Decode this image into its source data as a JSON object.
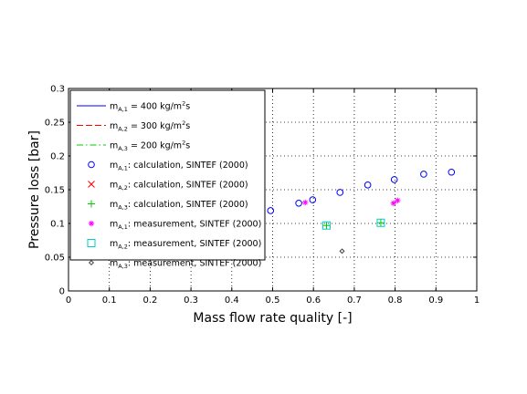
{
  "chart_data": {
    "type": "scatter",
    "title": "",
    "xlabel": "Mass flow rate quality [-]",
    "ylabel": "Pressure loss [bar]",
    "xlim": [
      0,
      1
    ],
    "ylim": [
      0,
      0.3
    ],
    "xticks": [
      "0",
      "0.1",
      "0.2",
      "0.3",
      "0.4",
      "0.5",
      "0.6",
      "0.7",
      "0.8",
      "0.9",
      "1"
    ],
    "yticks": [
      "0",
      "0.05",
      "0.1",
      "0.15",
      "0.2",
      "0.25",
      "0.3"
    ],
    "grid": true,
    "legend_position": "top-left",
    "series": [
      {
        "legend": {
          "pre": "m",
          "sub": "A,1",
          "post": " = 400 kg/m",
          "sup": "2",
          "tail": "s"
        },
        "kind": "line",
        "style": "solid",
        "color": "#0000ff",
        "points": []
      },
      {
        "legend": {
          "pre": "m",
          "sub": "A,2",
          "post": " = 300 kg/m",
          "sup": "2",
          "tail": "s"
        },
        "kind": "line",
        "style": "dashed",
        "color": "#ff0000",
        "points": []
      },
      {
        "legend": {
          "pre": "m",
          "sub": "A,3",
          "post": " = 200 kg/m",
          "sup": "2",
          "tail": "s"
        },
        "kind": "line",
        "style": "dashdot",
        "color": "#00cc00",
        "points": []
      },
      {
        "legend": {
          "pre": "m",
          "sub": "A,1",
          "post": ": calculation, SINTEF (2000)",
          "sup": "",
          "tail": ""
        },
        "kind": "marker",
        "marker": "circle",
        "color": "#0000ff",
        "points": [
          [
            0.495,
            0.119
          ],
          [
            0.564,
            0.13
          ],
          [
            0.598,
            0.135
          ],
          [
            0.665,
            0.146
          ],
          [
            0.733,
            0.157
          ],
          [
            0.798,
            0.165
          ],
          [
            0.87,
            0.173
          ],
          [
            0.938,
            0.176
          ]
        ]
      },
      {
        "legend": {
          "pre": "m",
          "sub": "A,2",
          "post": ": calculation, SINTEF (2000)",
          "sup": "",
          "tail": ""
        },
        "kind": "marker",
        "marker": "x",
        "color": "#ff0000",
        "points": []
      },
      {
        "legend": {
          "pre": "m",
          "sub": "A,3",
          "post": ": calculation, SINTEF (2000)",
          "sup": "",
          "tail": ""
        },
        "kind": "marker",
        "marker": "plus",
        "color": "#00cc00",
        "points": [
          [
            0.632,
            0.097
          ],
          [
            0.765,
            0.101
          ]
        ]
      },
      {
        "legend": {
          "pre": "m",
          "sub": "A,1",
          "post": ": measurement, SINTEF (2000)",
          "sup": "",
          "tail": ""
        },
        "kind": "marker",
        "marker": "star",
        "color": "#ff00ff",
        "points": [
          [
            0.58,
            0.131
          ],
          [
            0.796,
            0.13
          ],
          [
            0.806,
            0.134
          ]
        ]
      },
      {
        "legend": {
          "pre": "m",
          "sub": "A,2",
          "post": ": measurement, SINTEF (2000)",
          "sup": "",
          "tail": ""
        },
        "kind": "marker",
        "marker": "square",
        "color": "#00cccc",
        "points": [
          [
            0.632,
            0.097
          ],
          [
            0.765,
            0.101
          ]
        ]
      },
      {
        "legend": {
          "pre": "m",
          "sub": "A,3",
          "post": ": measurement, SINTEF (2000)",
          "sup": "",
          "tail": ""
        },
        "kind": "marker",
        "marker": "diamond",
        "color": "#444444",
        "points": [
          [
            0.67,
            0.059
          ]
        ]
      }
    ]
  }
}
